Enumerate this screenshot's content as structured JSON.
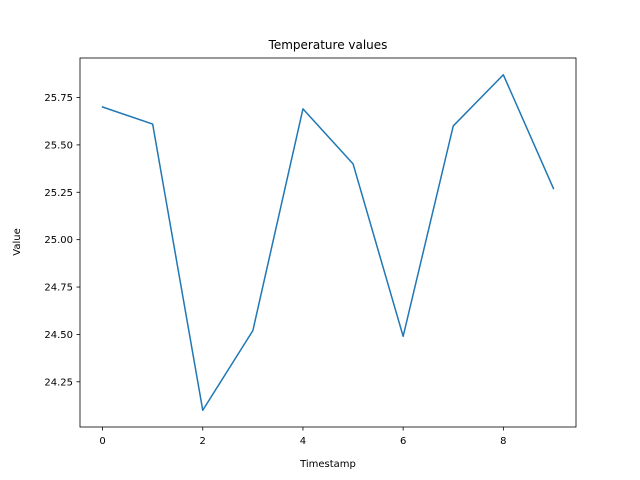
{
  "chart_data": {
    "type": "line",
    "title": "Temperature values",
    "xlabel": "Timestamp",
    "ylabel": "Value",
    "x": [
      0,
      1,
      2,
      3,
      4,
      5,
      6,
      7,
      8,
      9
    ],
    "series": [
      {
        "values": [
          25.7,
          25.61,
          24.1,
          24.52,
          25.69,
          25.4,
          24.49,
          25.6,
          25.87,
          25.27
        ],
        "color": "#1f77b4"
      }
    ],
    "xlim": [
      -0.45,
      9.45
    ],
    "ylim": [
      24.0115,
      25.9585
    ],
    "xticks": [
      0,
      2,
      4,
      6,
      8
    ],
    "xtick_labels": [
      "0",
      "2",
      "4",
      "6",
      "8"
    ],
    "yticks": [
      24.25,
      24.5,
      24.75,
      25.0,
      25.25,
      25.5,
      25.75
    ],
    "ytick_labels": [
      "24.25",
      "24.50",
      "24.75",
      "25.00",
      "25.25",
      "25.50",
      "25.75"
    ],
    "grid": false,
    "legend": false
  }
}
